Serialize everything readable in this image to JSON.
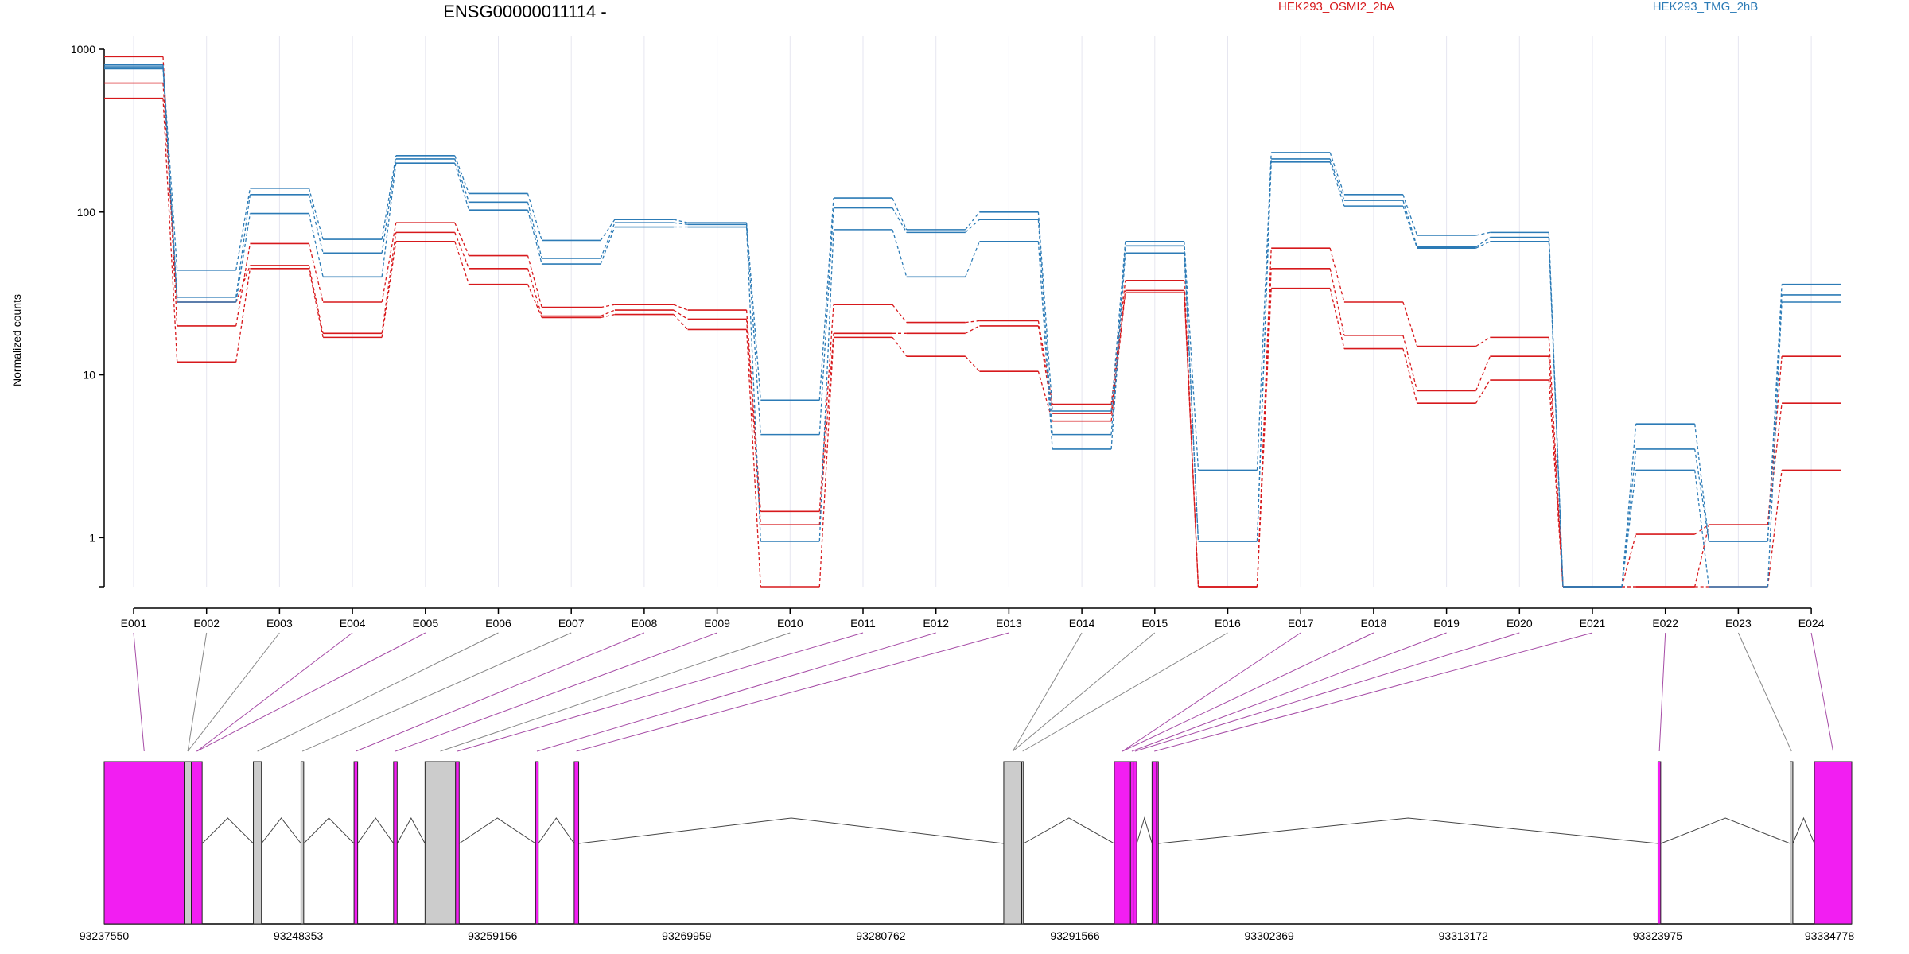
{
  "chart_data": {
    "type": "line",
    "title": "ENSG00000011114 -",
    "ylabel": "Normalized counts",
    "yscale": "log",
    "ylim": [
      0.5,
      1000
    ],
    "yticks": [
      1,
      10,
      100,
      1000
    ],
    "ytick_labels": [
      "1",
      "10",
      "100",
      "1000"
    ],
    "categories": [
      "E001",
      "E002",
      "E003",
      "E004",
      "E005",
      "E006",
      "E007",
      "E008",
      "E009",
      "E010",
      "E011",
      "E012",
      "E013",
      "E014",
      "E015",
      "E016",
      "E017",
      "E018",
      "E019",
      "E020",
      "E021",
      "E022",
      "E023",
      "E024"
    ],
    "groups": [
      {
        "name": "HEK293_OSMI2_2hA",
        "color": "#d7191c"
      },
      {
        "name": "HEK293_TMG_2hB",
        "color": "#2c7bb6"
      }
    ],
    "series": [
      {
        "group": 0,
        "values": [
          900,
          20,
          64,
          28,
          86,
          54,
          26,
          27,
          25,
          1.45,
          27,
          21,
          21.5,
          6.6,
          38,
          0.5,
          60,
          28,
          15,
          17,
          0.5,
          1.05,
          1.2,
          13
        ]
      },
      {
        "group": 0,
        "values": [
          620,
          28,
          47,
          18,
          75,
          45,
          23,
          25,
          22,
          1.2,
          18,
          18,
          20,
          5.8,
          33,
          0.5,
          45,
          17.5,
          8,
          13,
          0.5,
          0.5,
          1.2,
          6.7
        ]
      },
      {
        "group": 0,
        "values": [
          500,
          12,
          45,
          17,
          66,
          36,
          22.5,
          23.5,
          19,
          0.5,
          17,
          13,
          10.5,
          5.2,
          32,
          0.5,
          34,
          14.5,
          6.7,
          9.3,
          0.5,
          0.5,
          0.5,
          2.6
        ]
      },
      {
        "group": 1,
        "values": [
          800,
          44,
          140,
          68,
          222,
          130,
          67,
          90,
          86,
          7,
          122,
          78,
          100,
          6,
          66,
          2.6,
          232,
          128,
          72,
          75,
          0.5,
          5,
          0.95,
          36
        ]
      },
      {
        "group": 1,
        "values": [
          780,
          30,
          128,
          56,
          212,
          115,
          52,
          86,
          84,
          4.3,
          106,
          75,
          90,
          4.3,
          62,
          0.95,
          212,
          118,
          61,
          70,
          0.5,
          3.5,
          0.95,
          31
        ]
      },
      {
        "group": 1,
        "values": [
          760,
          28,
          98,
          40,
          200,
          103,
          48,
          81,
          81,
          0.95,
          78,
          40,
          66,
          3.5,
          56,
          0.95,
          203,
          109,
          60,
          66,
          0.5,
          2.6,
          0.5,
          28
        ]
      }
    ],
    "gene_model": {
      "coordinates": [
        "93237550",
        "93248353",
        "93259156",
        "93269959",
        "93280762",
        "93291566",
        "93302369",
        "93313172",
        "93323975",
        "93334778"
      ],
      "genomic_start": 93237550,
      "genomic_end": 93334778,
      "exons": [
        {
          "label": "E001",
          "start": 93237550,
          "end": 93242000,
          "significant": true
        },
        {
          "label": "E002",
          "start": 93242000,
          "end": 93242400,
          "significant": false
        },
        {
          "label": "E003",
          "start": 93242400,
          "end": 93243000,
          "significant": true
        },
        {
          "label": "E004",
          "start": 93245850,
          "end": 93246300,
          "significant": false
        },
        {
          "label": "E005",
          "start": 93248500,
          "end": 93248650,
          "significant": false
        },
        {
          "label": "E006",
          "start": 93251450,
          "end": 93251650,
          "significant": true
        },
        {
          "label": "E007",
          "start": 93253650,
          "end": 93253850,
          "significant": true
        },
        {
          "label": "E008",
          "start": 93255400,
          "end": 93257100,
          "significant": false
        },
        {
          "label": "E009",
          "start": 93257100,
          "end": 93257300,
          "significant": true
        },
        {
          "label": "E010",
          "start": 93261550,
          "end": 93261700,
          "significant": true
        },
        {
          "label": "E011",
          "start": 93263700,
          "end": 93263950,
          "significant": true
        },
        {
          "label": "E012",
          "start": 93287600,
          "end": 93288600,
          "significant": false
        },
        {
          "label": "E013",
          "start": 93288600,
          "end": 93288700,
          "significant": false
        },
        {
          "label": "E014",
          "start": 93293750,
          "end": 93294650,
          "significant": true
        },
        {
          "label": "E015",
          "start": 93294650,
          "end": 93294800,
          "significant": true
        },
        {
          "label": "E016",
          "start": 93294800,
          "end": 93295000,
          "significant": true
        },
        {
          "label": "E017",
          "start": 93295850,
          "end": 93296100,
          "significant": true
        },
        {
          "label": "E018",
          "start": 93296100,
          "end": 93296200,
          "significant": true
        },
        {
          "label": "E019",
          "start": 93324000,
          "end": 93324150,
          "significant": true
        },
        {
          "label": "E020",
          "start": 93331350,
          "end": 93331500,
          "significant": false
        },
        {
          "label": "E021",
          "start": 93332700,
          "end": 93334778,
          "significant": true
        }
      ],
      "connectors": [
        {
          "label": "E001",
          "exon": 0
        },
        {
          "label": "E002",
          "exon": 1
        },
        {
          "label": "E003",
          "exon": 1
        },
        {
          "label": "E004",
          "exon": 2
        },
        {
          "label": "E005",
          "exon": 2
        },
        {
          "label": "E006",
          "exon": 3
        },
        {
          "label": "E007",
          "exon": 4
        },
        {
          "label": "E008",
          "exon": 5
        },
        {
          "label": "E009",
          "exon": 6
        },
        {
          "label": "E010",
          "exon": 7
        },
        {
          "label": "E011",
          "exon": 8
        },
        {
          "label": "E012",
          "exon": 9
        },
        {
          "label": "E013",
          "exon": 10
        },
        {
          "label": "E014",
          "exon": 11
        },
        {
          "label": "E015",
          "exon": 11
        },
        {
          "label": "E016",
          "exon": 12
        },
        {
          "label": "E017",
          "exon": 13
        },
        {
          "label": "E018",
          "exon": 13
        },
        {
          "label": "E019",
          "exon": 14
        },
        {
          "label": "E020",
          "exon": 15
        },
        {
          "label": "E021",
          "exon": 16
        },
        {
          "label": "E022",
          "exon": 18
        },
        {
          "label": "E023",
          "exon": 19
        },
        {
          "label": "E024",
          "exon": 20
        }
      ],
      "colors": {
        "significant": "#f21ef2",
        "nonsignificant": "#cccccc",
        "sig_line": "#a64ca6",
        "nonsig_line": "#888888"
      }
    }
  }
}
